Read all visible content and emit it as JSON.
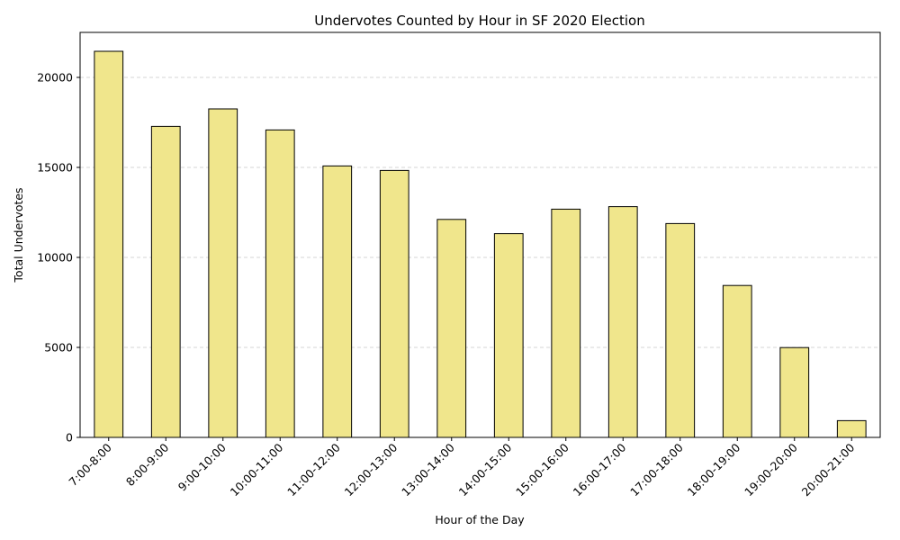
{
  "chart_data": {
    "type": "bar",
    "title": "Undervotes Counted by Hour in SF 2020 Election",
    "xlabel": "Hour of the Day",
    "ylabel": "Total Undervotes",
    "categories": [
      "7:00-8:00",
      "8:00-9:00",
      "9:00-10:00",
      "10:00-11:00",
      "11:00-12:00",
      "12:00-13:00",
      "13:00-14:00",
      "14:00-15:00",
      "15:00-16:00",
      "16:00-17:00",
      "17:00-18:00",
      "18:00-19:00",
      "19:00-20:00",
      "20:00-21:00"
    ],
    "values": [
      21450,
      17280,
      18250,
      17080,
      15080,
      14830,
      12110,
      11320,
      12680,
      12820,
      11880,
      8440,
      4990,
      930
    ],
    "ylim": [
      0,
      22500
    ],
    "yticks": [
      0,
      5000,
      10000,
      15000,
      20000
    ],
    "grid": "y-dashed",
    "bar_color": "#f0e68c",
    "edge_color": "#000000",
    "grid_color": "#c8c8c8"
  }
}
